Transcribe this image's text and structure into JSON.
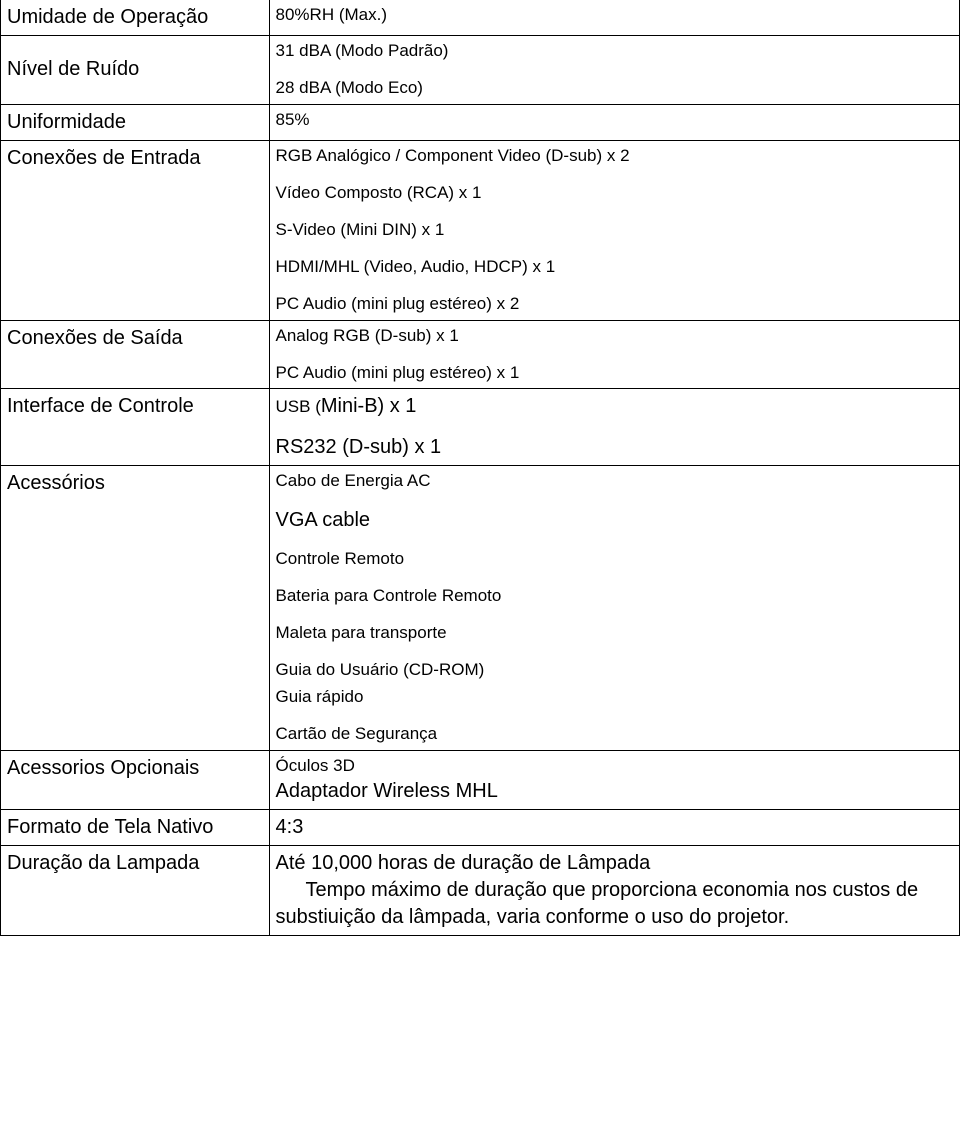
{
  "rows": {
    "r1": {
      "label": "Umidade de Operação",
      "value": "80%RH (Max.)"
    },
    "r2": {
      "label": "Nível de Ruído",
      "v1": "31 dBA (Modo Padrão)",
      "v2": "28 dBA (Modo Eco)"
    },
    "r3": {
      "label": "Uniformidade",
      "value": "85%"
    },
    "r4": {
      "label": "Conexões de Entrada",
      "v1": "RGB Analógico / Component Video (D-sub) x 2",
      "v2": "Vídeo Composto (RCA) x 1",
      "v3": "S-Video (Mini DIN) x 1",
      "v4": "HDMI/MHL (Video, Audio, HDCP) x 1",
      "v5": "PC Audio (mini plug estéreo) x 2"
    },
    "r5": {
      "label": "Conexões de Saída",
      "v1": "Analog RGB (D-sub) x 1",
      "v2": "PC Audio (mini plug estéreo) x 1"
    },
    "r6": {
      "label": "Interface de Controle",
      "v1": "USB (Mini-B) x 1",
      "v1a": "USB (",
      "v1b": "Mini-B) x 1",
      "v2": "RS232 (D-sub) x 1"
    },
    "r7": {
      "label": "Acessórios",
      "v1": "Cabo de Energia AC",
      "v2": "VGA cable",
      "v3": "Controle Remoto",
      "v4": "Bateria para Controle Remoto",
      "v5": "Maleta para transporte",
      "v6": "Guia do Usuário (CD-ROM)",
      "v7": "Guia rápido",
      "v8": "Cartão de Segurança"
    },
    "r8": {
      "label": "Acessorios Opcionais",
      "v1": "Óculos 3D",
      "v2": "Adaptador Wireless MHL"
    },
    "r9": {
      "label": "Formato de Tela Nativo",
      "value": "4:3"
    },
    "r10": {
      "label": "Duração da Lampada",
      "v1": "Até 10,000 horas de duração de Lâmpada",
      "v2": "Tempo máximo de duração que proporciona economia nos custos de substiuição da lâmpada, varia conforme o uso do projetor."
    }
  }
}
